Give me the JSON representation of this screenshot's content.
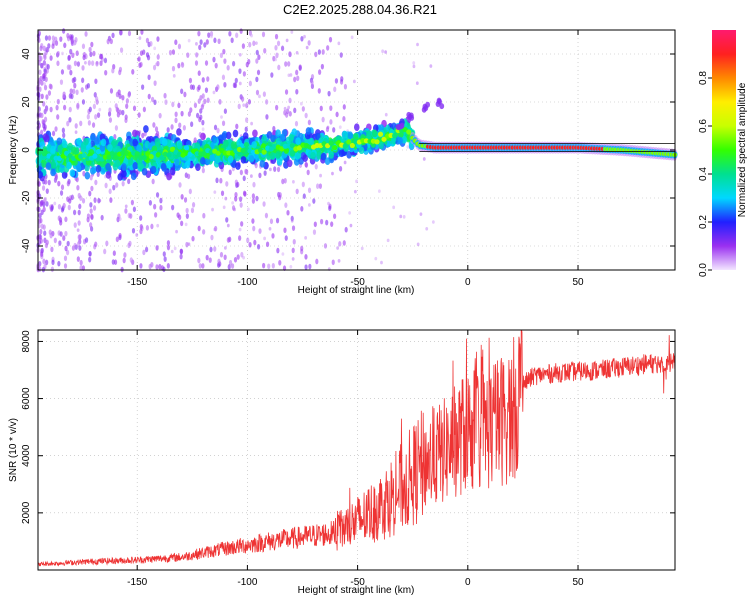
{
  "title": "C2E2.2025.288.04.36.R21",
  "chart_data": [
    {
      "type": "heatmap",
      "xlabel": "Height of straight line (km)",
      "ylabel": "Frequency (Hz)",
      "xlim": [
        -195,
        94
      ],
      "ylim": [
        -50,
        50
      ],
      "xticks": [
        -150,
        -100,
        -50,
        0,
        50
      ],
      "yticks": [
        -40,
        -20,
        0,
        20,
        40
      ],
      "grid": true,
      "colorbar": {
        "label": "Normalized spectral amplitude",
        "range": [
          0,
          1
        ],
        "ticks": [
          0.0,
          0.2,
          0.4,
          0.6,
          0.8
        ]
      },
      "ridge": [
        {
          "x": -195,
          "y": -3
        },
        {
          "x": -150,
          "y": -2
        },
        {
          "x": -120,
          "y": -1
        },
        {
          "x": -100,
          "y": 0
        },
        {
          "x": -80,
          "y": 1
        },
        {
          "x": -60,
          "y": 2
        },
        {
          "x": -45,
          "y": 4
        },
        {
          "x": -35,
          "y": 6
        },
        {
          "x": -28,
          "y": 8
        },
        {
          "x": -22,
          "y": 2
        },
        {
          "x": -15,
          "y": 1
        },
        {
          "x": 0,
          "y": 1
        },
        {
          "x": 50,
          "y": 1
        },
        {
          "x": 70,
          "y": 0
        },
        {
          "x": 94,
          "y": -2
        }
      ],
      "side_branch": [
        {
          "x": -30,
          "y": 10
        },
        {
          "x": -26,
          "y": 14
        },
        {
          "x": -20,
          "y": 18
        },
        {
          "x": -12,
          "y": 20
        }
      ]
    },
    {
      "type": "line",
      "xlabel": "Height of straight line (km)",
      "ylabel": "SNR (10 * v/v)",
      "xlim": [
        -195,
        94
      ],
      "ylim": [
        0,
        8400
      ],
      "xticks": [
        -150,
        -100,
        -50,
        0,
        50
      ],
      "yticks": [
        2000,
        4000,
        6000,
        8000
      ],
      "grid": true,
      "color": "#ee3333",
      "series": [
        {
          "name": "SNR",
          "x": [
            -195,
            -170,
            -150,
            -130,
            -110,
            -90,
            -75,
            -60,
            -50,
            -40,
            -30,
            -20,
            -10,
            0,
            10,
            20,
            25,
            30,
            40,
            60,
            80,
            94
          ],
          "y": [
            200,
            300,
            350,
            450,
            750,
            1000,
            1150,
            1300,
            1700,
            2200,
            2900,
            3700,
            4200,
            4900,
            5000,
            5500,
            6500,
            6800,
            6900,
            7000,
            7200,
            7300
          ]
        }
      ]
    }
  ]
}
